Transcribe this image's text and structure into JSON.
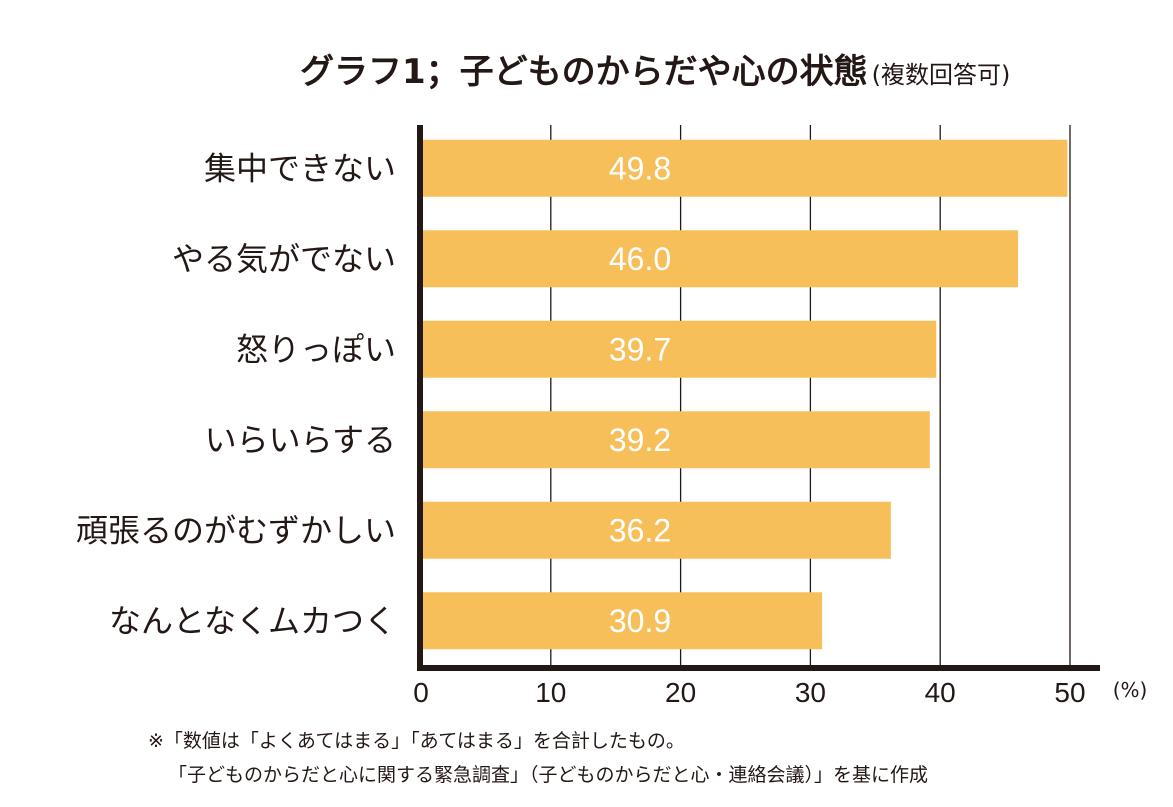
{
  "chart_data": {
    "type": "bar",
    "orientation": "horizontal",
    "title": "グラフ1；子どものからだや心の状態",
    "subtitle": "(複数回答可)",
    "categories": [
      "集中できない",
      "やる気がでない",
      "怒りっぽい",
      "いらいらする",
      "頑張るのがむずかしい",
      "なんとなくムカつく"
    ],
    "values": [
      49.8,
      46.0,
      39.7,
      39.2,
      36.2,
      30.9
    ],
    "value_labels": [
      "49.8",
      "46.0",
      "39.7",
      "39.2",
      "36.2",
      "30.9"
    ],
    "xlim": [
      0,
      50
    ],
    "xticks": [
      0,
      10,
      20,
      30,
      40,
      50
    ],
    "xtick_labels": [
      "0",
      "10",
      "20",
      "30",
      "40",
      "50"
    ],
    "xlabel": "(%)",
    "ylabel": "",
    "grid": true,
    "bar_color": "#F6BF5A",
    "value_label_color": "#FFFFFF"
  },
  "notes": [
    "※「数値は「よくあてはまる」「あてはまる」を合計したもの。",
    "「子どものからだと心に関する緊急調査」（子どものからだと心・連絡会議）」を基に作成"
  ]
}
